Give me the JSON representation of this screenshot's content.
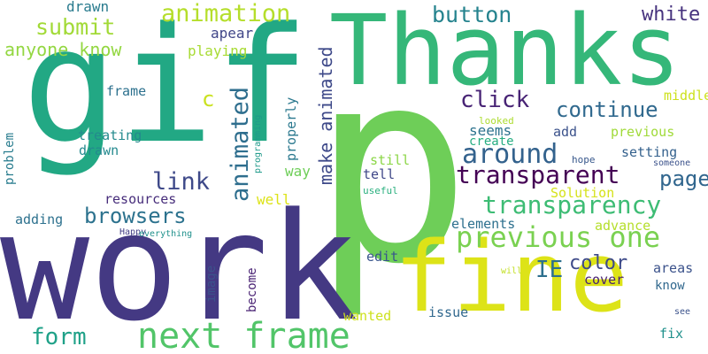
{
  "words": [
    {
      "text": "p",
      "color": "#6ece58",
      "vertical": false
    },
    {
      "text": "gif",
      "color": "#22a884",
      "vertical": false
    },
    {
      "text": "work",
      "color": "#443983",
      "vertical": false
    },
    {
      "text": "Thanks",
      "color": "#35b779",
      "vertical": false
    },
    {
      "text": "fine",
      "color": "#dde318",
      "vertical": false
    },
    {
      "text": "next frame",
      "color": "#52c569",
      "vertical": false
    },
    {
      "text": "previous one",
      "color": "#7ad151",
      "vertical": false
    },
    {
      "text": "transparency",
      "color": "#3dbc74",
      "vertical": false
    },
    {
      "text": "transparent",
      "color": "#440154",
      "vertical": false
    },
    {
      "text": "animation",
      "color": "#b5de2b",
      "vertical": false
    },
    {
      "text": "submit",
      "color": "#a2da37",
      "vertical": false
    },
    {
      "text": "browsers",
      "color": "#2c728e",
      "vertical": false
    },
    {
      "text": "around",
      "color": "#33628d",
      "vertical": false
    },
    {
      "text": "continue",
      "color": "#30698e",
      "vertical": false
    },
    {
      "text": "click",
      "color": "#482475",
      "vertical": false
    },
    {
      "text": "button",
      "color": "#25838e",
      "vertical": false
    },
    {
      "text": "white",
      "color": "#46327e",
      "vertical": false
    },
    {
      "text": "form",
      "color": "#1fa188",
      "vertical": false
    },
    {
      "text": "link",
      "color": "#3e4989",
      "vertical": false
    },
    {
      "text": "page",
      "color": "#31668e",
      "vertical": false
    },
    {
      "text": "anyone know",
      "color": "#93d741",
      "vertical": false
    },
    {
      "text": "IE",
      "color": "#2d708e",
      "vertical": false
    },
    {
      "text": "color",
      "color": "#3e4a89",
      "vertical": false
    },
    {
      "text": "c",
      "color": "#cae11f",
      "vertical": false
    },
    {
      "text": "animated",
      "color": "#2e6e8e",
      "vertical": true
    },
    {
      "text": "make animated",
      "color": "#3e4989",
      "vertical": true
    },
    {
      "text": "drawn",
      "color": "#297b8e",
      "vertical": false
    },
    {
      "text": "apear",
      "color": "#404688",
      "vertical": false
    },
    {
      "text": "playing",
      "color": "#a8db34",
      "vertical": false
    },
    {
      "text": "frame",
      "color": "#2d718e",
      "vertical": false
    },
    {
      "text": "treating",
      "color": "#238a8d",
      "vertical": false
    },
    {
      "text": "drawn",
      "color": "#23898e",
      "vertical": false
    },
    {
      "text": "resources",
      "color": "#472d7b",
      "vertical": false
    },
    {
      "text": "adding",
      "color": "#2d718e",
      "vertical": false
    },
    {
      "text": "Happy",
      "color": "#433e85",
      "vertical": false
    },
    {
      "text": "everything",
      "color": "#21918c",
      "vertical": false
    },
    {
      "text": "problem",
      "color": "#287c8e",
      "vertical": true
    },
    {
      "text": "programming",
      "color": "#1f9a8a",
      "vertical": true
    },
    {
      "text": "properly",
      "color": "#2a788e",
      "vertical": true
    },
    {
      "text": "way",
      "color": "#6ece58",
      "vertical": false
    },
    {
      "text": "well",
      "color": "#dde318",
      "vertical": false
    },
    {
      "text": "image",
      "color": "#3b528b",
      "vertical": true
    },
    {
      "text": "become",
      "color": "#482173",
      "vertical": true
    },
    {
      "text": "wanted",
      "color": "#cde11d",
      "vertical": false
    },
    {
      "text": "issue",
      "color": "#31688e",
      "vertical": false
    },
    {
      "text": "edit",
      "color": "#39558c",
      "vertical": false
    },
    {
      "text": "tell",
      "color": "#3f4788",
      "vertical": false
    },
    {
      "text": "useful",
      "color": "#2ab07f",
      "vertical": false
    },
    {
      "text": "still",
      "color": "#8bd646",
      "vertical": false
    },
    {
      "text": "seems",
      "color": "#2c728e",
      "vertical": false
    },
    {
      "text": "create",
      "color": "#26ad81",
      "vertical": false
    },
    {
      "text": "elements",
      "color": "#2d708e",
      "vertical": false
    },
    {
      "text": "add",
      "color": "#3b528b",
      "vertical": false
    },
    {
      "text": "previous",
      "color": "#a0da39",
      "vertical": false
    },
    {
      "text": "middle",
      "color": "#cde11d",
      "vertical": false
    },
    {
      "text": "looked",
      "color": "#addc30",
      "vertical": false
    },
    {
      "text": "hope",
      "color": "#38588c",
      "vertical": false
    },
    {
      "text": "setting",
      "color": "#34618d",
      "vertical": false
    },
    {
      "text": "someone",
      "color": "#3b528b",
      "vertical": false
    },
    {
      "text": "Solution",
      "color": "#d5e21a",
      "vertical": false
    },
    {
      "text": "advance",
      "color": "#b5de2b",
      "vertical": false
    },
    {
      "text": "areas",
      "color": "#3b528b",
      "vertical": false
    },
    {
      "text": "cover",
      "color": "#482173",
      "vertical": false
    },
    {
      "text": "will",
      "color": "#c2df23",
      "vertical": false
    },
    {
      "text": "know",
      "color": "#31688e",
      "vertical": false
    },
    {
      "text": "fix",
      "color": "#21918c",
      "vertical": false
    },
    {
      "text": "see",
      "color": "#3b528b",
      "vertical": false
    }
  ]
}
